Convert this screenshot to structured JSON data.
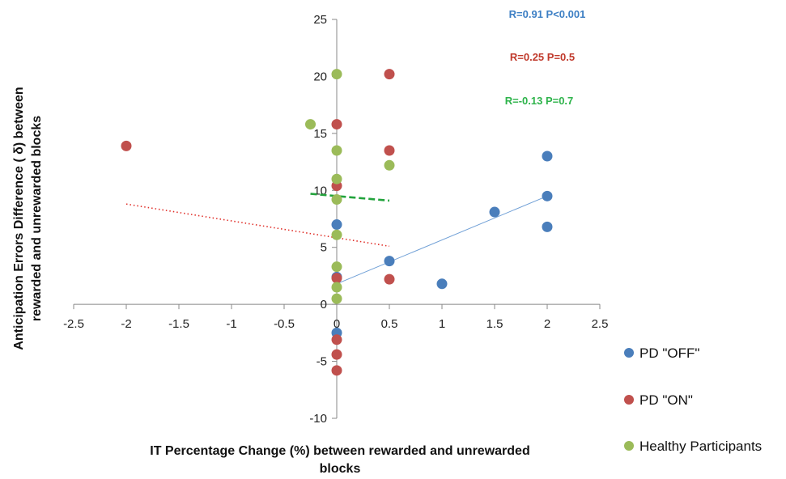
{
  "chart_data": {
    "type": "scatter",
    "xlabel": [
      "IT Percentage Change (%) between rewarded and unrewarded",
      "blocks"
    ],
    "ylabel": [
      "Anticipation Errors Difference ( δ) between",
      "rewarded and unrewarded blocks"
    ],
    "xlim": [
      -2.5,
      2.5
    ],
    "ylim": [
      -10,
      25
    ],
    "xticks": [
      "-2.5",
      "-2",
      "-1.5",
      "-1",
      "-0.5",
      "0",
      "0.5",
      "1",
      "1.5",
      "2",
      "2.5"
    ],
    "yticks": [
      "-10",
      "-5",
      "0",
      "5",
      "10",
      "15",
      "20",
      "25"
    ],
    "grid": false,
    "legend_position": "right",
    "series": [
      {
        "name": "PD \"OFF\"",
        "color": "#4a7ebb",
        "points": [
          [
            0,
            7.0
          ],
          [
            0,
            2.4
          ],
          [
            0,
            -2.5
          ],
          [
            0.5,
            3.8
          ],
          [
            1,
            1.8
          ],
          [
            1.5,
            8.1
          ],
          [
            2,
            13.0
          ],
          [
            2,
            9.5
          ],
          [
            2,
            6.8
          ]
        ],
        "trend": {
          "style": "solid",
          "x": [
            0,
            2
          ],
          "y": [
            1.8,
            9.5
          ]
        },
        "annotation": "R=0.91  P<0.001",
        "annotation_color": "#3d7fc4"
      },
      {
        "name": "PD \"ON\"",
        "color": "#c0504d",
        "points": [
          [
            -2,
            13.9
          ],
          [
            0,
            15.8
          ],
          [
            0,
            10.4
          ],
          [
            0,
            2.3
          ],
          [
            0,
            -3.1
          ],
          [
            0,
            -4.4
          ],
          [
            0,
            -5.8
          ],
          [
            0.5,
            20.2
          ],
          [
            0.5,
            13.5
          ],
          [
            0.5,
            2.2
          ]
        ],
        "trend": {
          "style": "dotted",
          "x": [
            -2,
            0.5
          ],
          "y": [
            8.8,
            5.1
          ]
        },
        "annotation": "R=0.25   P=0.5",
        "annotation_color": "#c0392b"
      },
      {
        "name": "Healthy Participants",
        "color": "#9bbb59",
        "points": [
          [
            0,
            20.2
          ],
          [
            -0.25,
            15.8
          ],
          [
            0,
            13.5
          ],
          [
            0,
            11.0
          ],
          [
            0,
            9.2
          ],
          [
            0,
            6.1
          ],
          [
            0,
            3.3
          ],
          [
            0,
            1.5
          ],
          [
            0,
            0.5
          ],
          [
            0.5,
            12.2
          ]
        ],
        "trend": {
          "style": "dashed",
          "x": [
            -0.25,
            0.5
          ],
          "y": [
            9.7,
            9.1
          ]
        },
        "annotation": "R=-0.13  P=0.7",
        "annotation_color": "#2db34a"
      }
    ]
  }
}
